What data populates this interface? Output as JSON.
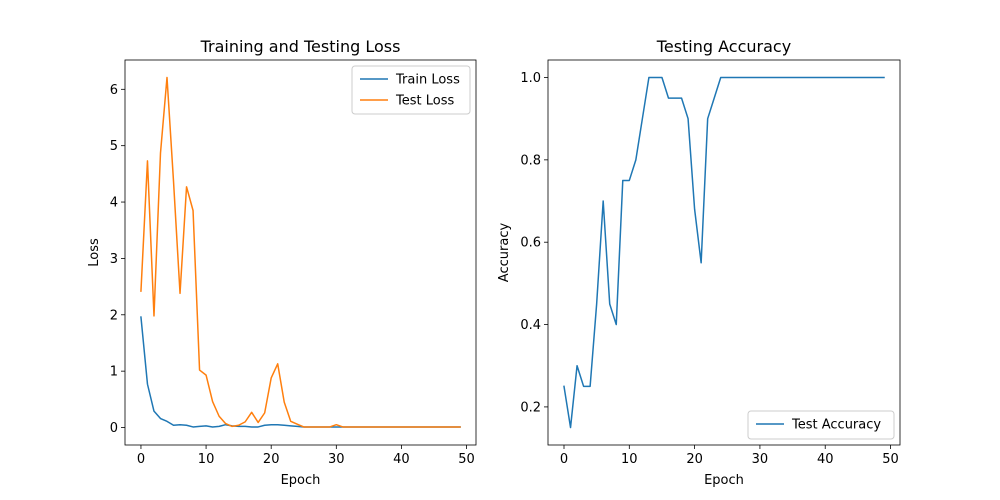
{
  "chart_data": [
    {
      "type": "line",
      "title": "Training and Testing Loss",
      "xlabel": "Epoch",
      "ylabel": "Loss",
      "xlim": [
        -2.45,
        51.45
      ],
      "ylim": [
        -0.31,
        6.52
      ],
      "xticks": [
        0,
        10,
        20,
        30,
        40,
        50
      ],
      "yticks": [
        0,
        1,
        2,
        3,
        4,
        5,
        6
      ],
      "legend": "top-right",
      "grid": false,
      "series": [
        {
          "name": "Train Loss",
          "color": "#1f77b4",
          "x": [
            0,
            1,
            2,
            3,
            4,
            5,
            6,
            7,
            8,
            9,
            10,
            11,
            12,
            13,
            14,
            15,
            16,
            17,
            18,
            19,
            20,
            21,
            22,
            23,
            24,
            25,
            26,
            27,
            28,
            29,
            30,
            31,
            32,
            33,
            34,
            35,
            36,
            37,
            38,
            39,
            40,
            41,
            42,
            43,
            44,
            45,
            46,
            47,
            48,
            49
          ],
          "values": [
            1.96,
            0.77,
            0.29,
            0.16,
            0.11,
            0.04,
            0.05,
            0.04,
            0.01,
            0.02,
            0.03,
            0.01,
            0.02,
            0.05,
            0.03,
            0.02,
            0.02,
            0.01,
            0.01,
            0.04,
            0.05,
            0.05,
            0.04,
            0.03,
            0.02,
            0.01,
            0.01,
            0.01,
            0.01,
            0.01,
            0.01,
            0.01,
            0.01,
            0.01,
            0.01,
            0.01,
            0.01,
            0.01,
            0.01,
            0.01,
            0.01,
            0.01,
            0.01,
            0.01,
            0.01,
            0.01,
            0.01,
            0.01,
            0.01,
            0.01
          ]
        },
        {
          "name": "Test Loss",
          "color": "#ff7f0e",
          "x": [
            0,
            1,
            2,
            3,
            4,
            5,
            6,
            7,
            8,
            9,
            10,
            11,
            12,
            13,
            14,
            15,
            16,
            17,
            18,
            19,
            20,
            21,
            22,
            23,
            24,
            25,
            26,
            27,
            28,
            29,
            30,
            31,
            32,
            33,
            34,
            35,
            36,
            37,
            38,
            39,
            40,
            41,
            42,
            43,
            44,
            45,
            46,
            47,
            48,
            49
          ],
          "values": [
            2.42,
            4.73,
            1.98,
            4.87,
            6.21,
            4.37,
            2.38,
            4.27,
            3.85,
            1.02,
            0.93,
            0.46,
            0.2,
            0.07,
            0.02,
            0.04,
            0.1,
            0.27,
            0.09,
            0.26,
            0.88,
            1.13,
            0.45,
            0.11,
            0.06,
            0.01,
            0.01,
            0.01,
            0.01,
            0.01,
            0.05,
            0.01,
            0.01,
            0.01,
            0.01,
            0.01,
            0.01,
            0.01,
            0.01,
            0.01,
            0.01,
            0.01,
            0.01,
            0.01,
            0.01,
            0.01,
            0.01,
            0.01,
            0.01,
            0.01
          ]
        }
      ]
    },
    {
      "type": "line",
      "title": "Testing Accuracy",
      "xlabel": "Epoch",
      "ylabel": "Accuracy",
      "xlim": [
        -2.45,
        51.45
      ],
      "ylim": [
        0.1075,
        1.0425
      ],
      "xticks": [
        0,
        10,
        20,
        30,
        40,
        50
      ],
      "yticks": [
        0.2,
        0.4,
        0.6,
        0.8,
        1.0
      ],
      "ytick_labels": [
        "0.2",
        "0.4",
        "0.6",
        "0.8",
        "1.0"
      ],
      "legend": "bottom-right",
      "grid": false,
      "series": [
        {
          "name": "Test Accuracy",
          "color": "#1f77b4",
          "x": [
            0,
            1,
            2,
            3,
            4,
            5,
            6,
            7,
            8,
            9,
            10,
            11,
            12,
            13,
            14,
            15,
            16,
            17,
            18,
            19,
            20,
            21,
            22,
            23,
            24,
            25,
            26,
            27,
            28,
            29,
            30,
            31,
            32,
            33,
            34,
            35,
            36,
            37,
            38,
            39,
            40,
            41,
            42,
            43,
            44,
            45,
            46,
            47,
            48,
            49
          ],
          "values": [
            0.25,
            0.15,
            0.3,
            0.25,
            0.25,
            0.45,
            0.7,
            0.45,
            0.4,
            0.75,
            0.75,
            0.8,
            0.9,
            1.0,
            1.0,
            1.0,
            0.95,
            0.95,
            0.95,
            0.9,
            0.68,
            0.55,
            0.9,
            0.95,
            1.0,
            1.0,
            1.0,
            1.0,
            1.0,
            1.0,
            1.0,
            1.0,
            1.0,
            1.0,
            1.0,
            1.0,
            1.0,
            1.0,
            1.0,
            1.0,
            1.0,
            1.0,
            1.0,
            1.0,
            1.0,
            1.0,
            1.0,
            1.0,
            1.0,
            1.0
          ]
        }
      ]
    }
  ]
}
